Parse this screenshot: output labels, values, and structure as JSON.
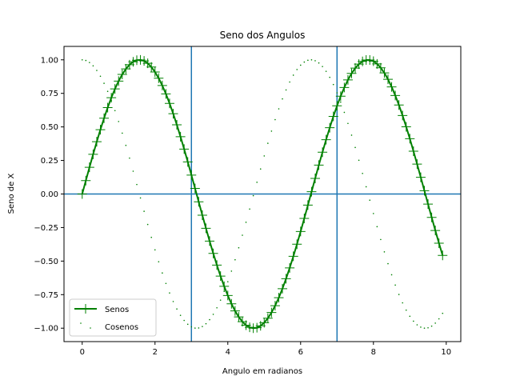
{
  "chart_data": {
    "type": "line",
    "title": "Seno dos Angulos",
    "xlabel": "Angulo em radianos",
    "ylabel": "Seno de X",
    "xlim": [
      -0.5,
      10.4
    ],
    "ylim": [
      -1.1,
      1.1
    ],
    "xticks": [
      0,
      2,
      4,
      6,
      8,
      10
    ],
    "yticks": [
      -1.0,
      -0.75,
      -0.5,
      -0.25,
      0.0,
      0.25,
      0.5,
      0.75,
      1.0
    ],
    "xtick_labels": [
      "0",
      "2",
      "4",
      "6",
      "8",
      "10"
    ],
    "ytick_labels": [
      "−1.00",
      "−0.75",
      "−0.50",
      "−0.25",
      "0.00",
      "0.25",
      "0.50",
      "0.75",
      "1.00"
    ],
    "x_start": 0,
    "x_end": 9.9,
    "x_step": 0.1,
    "series": [
      {
        "name": "Senos",
        "function": "sin",
        "color": "#008000",
        "marker": "+",
        "linewidth": 2
      },
      {
        "name": "Cosenos",
        "function": "cos",
        "color": "#008000",
        "marker": ".",
        "linewidth": 0
      }
    ],
    "reference_lines": {
      "vertical_x": [
        3,
        7
      ],
      "horizontal_y": [
        0
      ],
      "color": "#1f77b4"
    },
    "legend": {
      "location": "lower-left"
    },
    "grid": false
  }
}
